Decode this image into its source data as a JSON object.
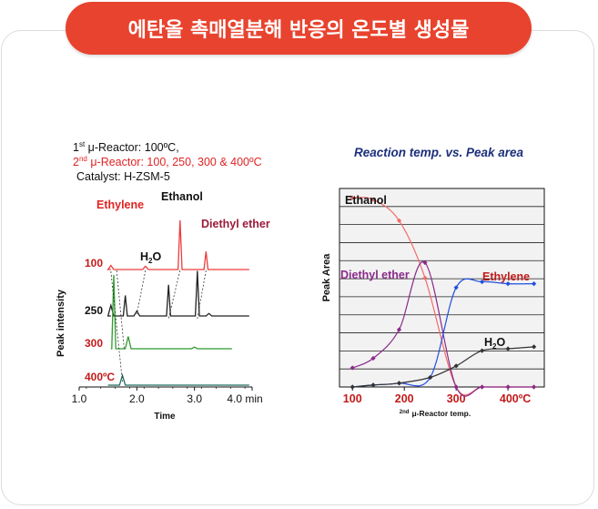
{
  "banner": {
    "title": "에탄올 촉매열분해 반응의 온도별 생성물"
  },
  "chart_data": [
    {
      "type": "line",
      "title": "",
      "conditions": {
        "reactor1": {
          "sup": "st",
          "text": " μ-Reactor: 100ºC,"
        },
        "reactor2": {
          "sup": "nd",
          "text": " μ-Reactor: 100, 250, 300 & 400ºC"
        },
        "catalyst": "Catalyst: H-ZSM-5"
      },
      "xlabel": "Time",
      "ylabel": "Peak intensity",
      "xlim": [
        1.0,
        4.0
      ],
      "x_ticks": [
        "1.0",
        "2.0",
        "3.0",
        "4.0 min"
      ],
      "peak_labels": {
        "ethylene": "Ethylene",
        "ethanol": "Ethanol",
        "diethyl_ether": "Diethyl ether",
        "water": "H",
        "water_sub": "2",
        "water_tail": "O"
      },
      "traces": [
        {
          "name": "100",
          "color": "#ee3b3b",
          "peaks": [
            [
              1.55,
              0.5
            ],
            [
              2.15,
              0.4
            ],
            [
              2.75,
              6.0
            ],
            [
              3.2,
              2.2
            ]
          ]
        },
        {
          "name": "250",
          "color": "#222222",
          "peaks": [
            [
              1.55,
              1.3
            ],
            [
              1.8,
              2.5
            ],
            [
              2.0,
              0.6
            ],
            [
              2.55,
              3.8
            ],
            [
              3.05,
              5.5
            ],
            [
              3.25,
              0.3
            ]
          ]
        },
        {
          "name": "300",
          "color": "#2e9a2e",
          "peaks": [
            [
              1.6,
              9.0
            ],
            [
              1.85,
              1.5
            ],
            [
              3.0,
              0.2
            ]
          ]
        },
        {
          "name": "400ºC",
          "color": "#1f6b5e",
          "peaks": [
            [
              1.75,
              1.2
            ]
          ]
        }
      ]
    },
    {
      "type": "line",
      "title": "Reaction temp. vs. Peak area",
      "xlabel": "μ-Reactor temp.",
      "xlabel_sup": "2nd",
      "ylabel": "Peak Area",
      "xlim": [
        75,
        470
      ],
      "ylim": [
        0,
        10
      ],
      "x_ticks": [
        "100",
        "200",
        "300",
        "400ºC"
      ],
      "x_tick_values": [
        100,
        200,
        300,
        400
      ],
      "grid": true,
      "series": [
        {
          "name": "Ethanol",
          "color": "#f26b6b",
          "x": [
            100,
            140,
            190,
            240,
            300,
            350,
            400,
            450
          ],
          "y": [
            9.9,
            9.8,
            8.7,
            5.7,
            0.0,
            0.0,
            0.0,
            0.0
          ]
        },
        {
          "name": "Diethyl ether",
          "color": "#8a2a8a",
          "x": [
            100,
            140,
            190,
            240,
            300,
            350,
            400,
            450
          ],
          "y": [
            1.0,
            1.5,
            3.0,
            6.5,
            0.0,
            0.0,
            0.0,
            0.0
          ]
        },
        {
          "name": "Ethylene",
          "color": "#1f4fe0",
          "x": [
            100,
            140,
            190,
            250,
            300,
            350,
            400,
            450
          ],
          "y": [
            0.0,
            0.1,
            0.2,
            0.5,
            5.2,
            5.5,
            5.4,
            5.4
          ]
        },
        {
          "name": "H2O",
          "label": "H",
          "label_sub": "2",
          "label_tail": "O",
          "color": "#333333",
          "x": [
            100,
            140,
            190,
            250,
            300,
            350,
            400,
            450
          ],
          "y": [
            0.0,
            0.1,
            0.2,
            0.5,
            1.1,
            1.9,
            2.0,
            2.1
          ]
        }
      ]
    }
  ]
}
